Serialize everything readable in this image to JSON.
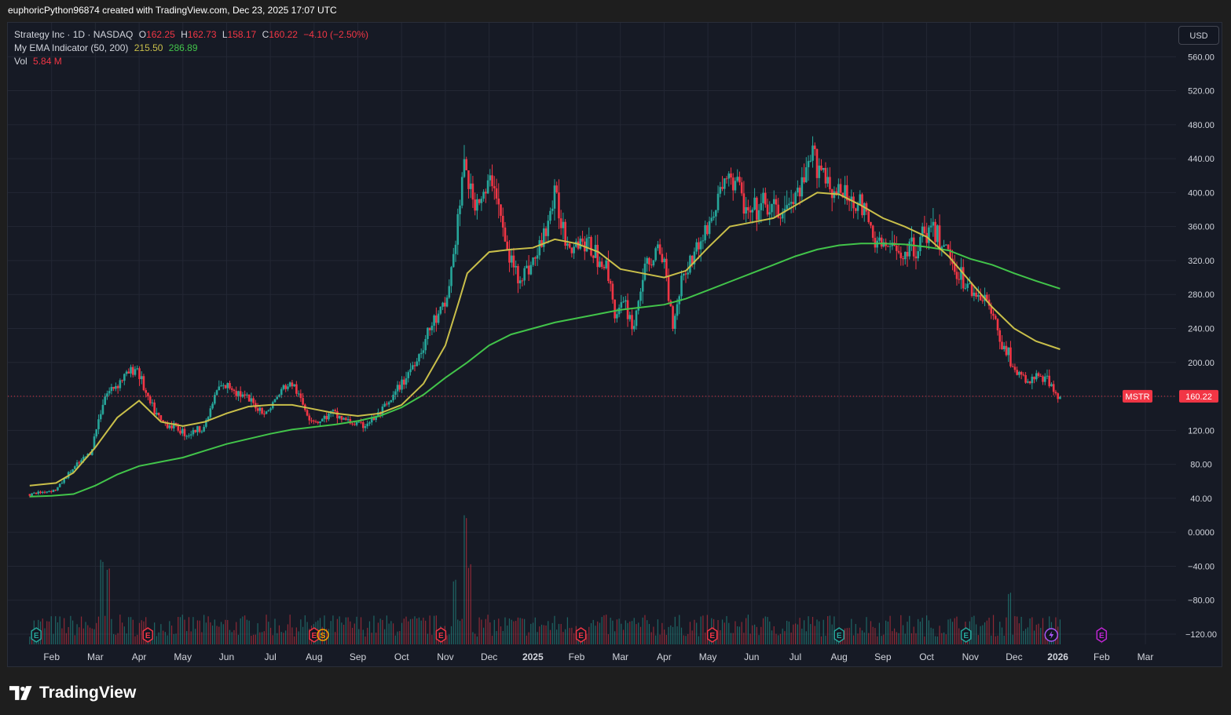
{
  "header": {
    "attribution": "euphoricPython96874 created with TradingView.com, Dec 23, 2025 17:07 UTC"
  },
  "legend": {
    "symbol_line": "Strategy Inc · 1D · NASDAQ",
    "o_label": "O",
    "o_value": "162.25",
    "h_label": "H",
    "h_value": "162.73",
    "l_label": "L",
    "l_value": "158.17",
    "c_label": "C",
    "c_value": "160.22",
    "change": "−4.10 (−2.50%)",
    "ema_label": "My EMA Indicator (50, 200)",
    "ema50_value": "215.50",
    "ema200_value": "286.89",
    "vol_label": "Vol",
    "vol_value": "5.84 M"
  },
  "currency_button": "USD",
  "price_tag": {
    "symbol": "MSTR",
    "value": "160.22"
  },
  "footer": {
    "brand": "TradingView"
  },
  "colors": {
    "up": "#26a69a",
    "down": "#f23645",
    "ema50": "#c9bf4a",
    "ema200": "#42c44a",
    "background": "#161a25",
    "grid": "#232734"
  },
  "chart_data": {
    "type": "candlestick",
    "symbol": "MSTR",
    "interval": "1D",
    "currency": "USD",
    "y_ticks": [
      "560.00",
      "520.00",
      "480.00",
      "440.00",
      "400.00",
      "360.00",
      "320.00",
      "280.00",
      "240.00",
      "200.00",
      "160.00",
      "120.00",
      "80.00",
      "40.00",
      "0.0000",
      "−40.00",
      "−80.00",
      "−120.00"
    ],
    "ylim": [
      -132,
      600
    ],
    "x_ticks": [
      {
        "label": "Feb",
        "t": 0.5,
        "bold": false
      },
      {
        "label": "Mar",
        "t": 1.5,
        "bold": false
      },
      {
        "label": "Apr",
        "t": 2.5,
        "bold": false
      },
      {
        "label": "May",
        "t": 3.5,
        "bold": false
      },
      {
        "label": "Jun",
        "t": 4.5,
        "bold": false
      },
      {
        "label": "Jul",
        "t": 5.5,
        "bold": false
      },
      {
        "label": "Aug",
        "t": 6.5,
        "bold": false
      },
      {
        "label": "Sep",
        "t": 7.5,
        "bold": false
      },
      {
        "label": "Oct",
        "t": 8.5,
        "bold": false
      },
      {
        "label": "Nov",
        "t": 9.5,
        "bold": false
      },
      {
        "label": "Dec",
        "t": 10.5,
        "bold": false
      },
      {
        "label": "2025",
        "t": 11.5,
        "bold": true
      },
      {
        "label": "Feb",
        "t": 12.5,
        "bold": false
      },
      {
        "label": "Mar",
        "t": 13.5,
        "bold": false
      },
      {
        "label": "Apr",
        "t": 14.5,
        "bold": false
      },
      {
        "label": "May",
        "t": 15.5,
        "bold": false
      },
      {
        "label": "Jun",
        "t": 16.5,
        "bold": false
      },
      {
        "label": "Jul",
        "t": 17.5,
        "bold": false
      },
      {
        "label": "Aug",
        "t": 18.5,
        "bold": false
      },
      {
        "label": "Sep",
        "t": 19.5,
        "bold": false
      },
      {
        "label": "Oct",
        "t": 20.5,
        "bold": false
      },
      {
        "label": "Nov",
        "t": 21.5,
        "bold": false
      },
      {
        "label": "Dec",
        "t": 22.5,
        "bold": false
      },
      {
        "label": "2026",
        "t": 23.5,
        "bold": true
      },
      {
        "label": "Feb",
        "t": 24.5,
        "bold": false
      },
      {
        "label": "Mar",
        "t": 25.5,
        "bold": false
      }
    ],
    "price_path": [
      [
        0,
        45
      ],
      [
        0.6,
        50
      ],
      [
        0.9,
        70
      ],
      [
        1.4,
        95
      ],
      [
        1.7,
        160
      ],
      [
        2.2,
        185
      ],
      [
        2.45,
        195
      ],
      [
        2.7,
        155
      ],
      [
        3.0,
        130
      ],
      [
        3.3,
        125
      ],
      [
        3.6,
        115
      ],
      [
        4.0,
        125
      ],
      [
        4.3,
        170
      ],
      [
        4.6,
        172
      ],
      [
        5.0,
        155
      ],
      [
        5.4,
        140
      ],
      [
        5.8,
        170
      ],
      [
        6.0,
        175
      ],
      [
        6.2,
        155
      ],
      [
        6.4,
        135
      ],
      [
        6.6,
        130
      ],
      [
        6.9,
        140
      ],
      [
        7.3,
        130
      ],
      [
        7.6,
        125
      ],
      [
        7.9,
        135
      ],
      [
        8.2,
        150
      ],
      [
        8.5,
        175
      ],
      [
        8.9,
        210
      ],
      [
        9.2,
        245
      ],
      [
        9.5,
        265
      ],
      [
        9.7,
        330
      ],
      [
        9.95,
        440
      ],
      [
        10.1,
        390
      ],
      [
        10.4,
        395
      ],
      [
        10.6,
        420
      ],
      [
        10.9,
        330
      ],
      [
        11.2,
        300
      ],
      [
        11.6,
        325
      ],
      [
        12.0,
        395
      ],
      [
        12.3,
        340
      ],
      [
        12.6,
        345
      ],
      [
        12.9,
        330
      ],
      [
        13.2,
        310
      ],
      [
        13.4,
        255
      ],
      [
        13.6,
        270
      ],
      [
        13.8,
        240
      ],
      [
        14.0,
        300
      ],
      [
        14.3,
        330
      ],
      [
        14.5,
        320
      ],
      [
        14.7,
        245
      ],
      [
        14.9,
        300
      ],
      [
        15.2,
        330
      ],
      [
        15.6,
        370
      ],
      [
        15.9,
        420
      ],
      [
        16.2,
        410
      ],
      [
        16.4,
        370
      ],
      [
        16.8,
        385
      ],
      [
        17.1,
        375
      ],
      [
        17.4,
        385
      ],
      [
        17.7,
        410
      ],
      [
        17.9,
        445
      ],
      [
        18.1,
        430
      ],
      [
        18.4,
        400
      ],
      [
        18.7,
        395
      ],
      [
        19.0,
        385
      ],
      [
        19.3,
        345
      ],
      [
        19.6,
        335
      ],
      [
        19.9,
        330
      ],
      [
        20.2,
        335
      ],
      [
        20.5,
        355
      ],
      [
        20.8,
        345
      ],
      [
        21.0,
        330
      ],
      [
        21.3,
        300
      ],
      [
        21.5,
        285
      ],
      [
        21.8,
        280
      ],
      [
        22.0,
        255
      ],
      [
        22.3,
        215
      ],
      [
        22.6,
        185
      ],
      [
        22.85,
        175
      ],
      [
        23.0,
        185
      ],
      [
        23.2,
        180
      ],
      [
        23.4,
        170
      ],
      [
        23.55,
        160.22
      ]
    ],
    "ema50_path": [
      [
        0,
        55
      ],
      [
        0.6,
        58
      ],
      [
        1.0,
        70
      ],
      [
        1.5,
        100
      ],
      [
        2.0,
        135
      ],
      [
        2.5,
        155
      ],
      [
        3.0,
        130
      ],
      [
        3.5,
        125
      ],
      [
        4.0,
        130
      ],
      [
        4.5,
        140
      ],
      [
        5.0,
        148
      ],
      [
        5.5,
        150
      ],
      [
        6.0,
        150
      ],
      [
        6.5,
        145
      ],
      [
        7.0,
        140
      ],
      [
        7.5,
        137
      ],
      [
        8.0,
        140
      ],
      [
        8.5,
        150
      ],
      [
        9.0,
        175
      ],
      [
        9.5,
        220
      ],
      [
        9.8,
        270
      ],
      [
        10.0,
        305
      ],
      [
        10.5,
        330
      ],
      [
        11.0,
        333
      ],
      [
        11.5,
        335
      ],
      [
        12.0,
        345
      ],
      [
        12.5,
        340
      ],
      [
        13.0,
        330
      ],
      [
        13.5,
        310
      ],
      [
        14.0,
        305
      ],
      [
        14.5,
        300
      ],
      [
        15.0,
        308
      ],
      [
        15.5,
        335
      ],
      [
        16.0,
        360
      ],
      [
        16.5,
        365
      ],
      [
        17.0,
        370
      ],
      [
        17.5,
        385
      ],
      [
        18.0,
        400
      ],
      [
        18.5,
        398
      ],
      [
        19.0,
        385
      ],
      [
        19.5,
        370
      ],
      [
        20.0,
        360
      ],
      [
        20.5,
        348
      ],
      [
        21.0,
        325
      ],
      [
        21.5,
        295
      ],
      [
        22.0,
        265
      ],
      [
        22.5,
        240
      ],
      [
        23.0,
        225
      ],
      [
        23.55,
        215.5
      ]
    ],
    "ema200_path": [
      [
        0,
        42
      ],
      [
        0.5,
        43
      ],
      [
        1.0,
        45
      ],
      [
        1.5,
        55
      ],
      [
        2.0,
        68
      ],
      [
        2.5,
        78
      ],
      [
        3.0,
        83
      ],
      [
        3.5,
        88
      ],
      [
        4.0,
        96
      ],
      [
        4.5,
        104
      ],
      [
        5.0,
        110
      ],
      [
        5.5,
        116
      ],
      [
        6.0,
        121
      ],
      [
        6.5,
        124
      ],
      [
        7.0,
        127
      ],
      [
        7.5,
        131
      ],
      [
        8.0,
        137
      ],
      [
        8.5,
        147
      ],
      [
        9.0,
        162
      ],
      [
        9.5,
        182
      ],
      [
        10.0,
        200
      ],
      [
        10.5,
        220
      ],
      [
        11.0,
        233
      ],
      [
        11.5,
        240
      ],
      [
        12.0,
        247
      ],
      [
        12.5,
        252
      ],
      [
        13.0,
        257
      ],
      [
        13.5,
        262
      ],
      [
        14.0,
        265
      ],
      [
        14.5,
        268
      ],
      [
        15.0,
        275
      ],
      [
        15.5,
        285
      ],
      [
        16.0,
        295
      ],
      [
        16.5,
        305
      ],
      [
        17.0,
        315
      ],
      [
        17.5,
        325
      ],
      [
        18.0,
        333
      ],
      [
        18.5,
        338
      ],
      [
        19.0,
        340
      ],
      [
        19.5,
        340
      ],
      [
        20.0,
        339
      ],
      [
        20.5,
        336
      ],
      [
        21.0,
        332
      ],
      [
        21.5,
        322
      ],
      [
        22.0,
        315
      ],
      [
        22.5,
        305
      ],
      [
        23.0,
        296
      ],
      [
        23.55,
        286.89
      ]
    ],
    "last_price": 160.22,
    "earnings_markers": [
      {
        "t": 0.15,
        "label": "E",
        "color": "#26a69a"
      },
      {
        "t": 2.7,
        "label": "E",
        "color": "#f23645"
      },
      {
        "t": 6.5,
        "label": "E",
        "color": "#f23645"
      },
      {
        "t": 6.7,
        "label": "S",
        "color": "#f59f00"
      },
      {
        "t": 9.4,
        "label": "E",
        "color": "#f23645"
      },
      {
        "t": 12.6,
        "label": "E",
        "color": "#f23645"
      },
      {
        "t": 15.6,
        "label": "E",
        "color": "#f23645"
      },
      {
        "t": 18.5,
        "label": "E",
        "color": "#26a69a"
      },
      {
        "t": 21.4,
        "label": "E",
        "color": "#26a69a"
      },
      {
        "t": 24.5,
        "label": "E",
        "color": "#c026d3"
      }
    ],
    "volume_spikes": [
      {
        "t": 1.65,
        "v": 95
      },
      {
        "t": 1.8,
        "v": 90
      },
      {
        "t": 9.7,
        "v": 70
      },
      {
        "t": 9.95,
        "v": 150
      },
      {
        "t": 10.05,
        "v": 95
      },
      {
        "t": 22.4,
        "v": 60
      }
    ]
  }
}
